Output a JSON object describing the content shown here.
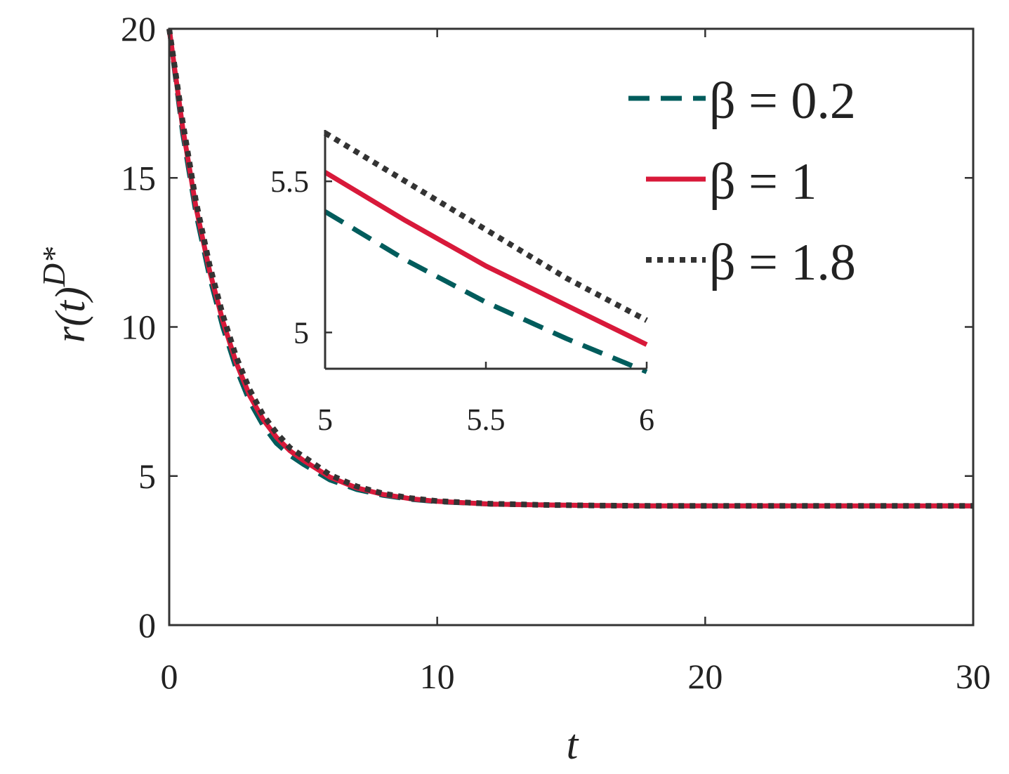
{
  "chart_data": {
    "type": "line",
    "xlabel": "t",
    "ylabel_base": "r(t)",
    "ylabel_sup": "D*",
    "xlim": [
      0,
      30
    ],
    "ylim": [
      0,
      20
    ],
    "xticks": [
      0,
      10,
      20,
      30
    ],
    "yticks": [
      0,
      5,
      10,
      15,
      20
    ],
    "grid": false,
    "legend_position": "top-right",
    "colors": {
      "beta_0_2": "#005c5c",
      "beta_1": "#d8193a",
      "beta_1_8": "#333333"
    },
    "series": [
      {
        "name": "β = 0.2",
        "style": "dashed",
        "color": "#005c5c",
        "x": [
          0,
          0.5,
          1,
          1.5,
          2,
          2.5,
          3,
          3.5,
          4,
          4.5,
          5,
          6,
          7,
          8,
          9,
          10,
          12,
          14,
          16,
          18,
          20,
          25,
          30
        ],
        "y": [
          20,
          16.5,
          13.8,
          11.7,
          10.0,
          8.6,
          7.5,
          6.7,
          6.1,
          5.7,
          5.4,
          4.87,
          4.55,
          4.35,
          4.22,
          4.14,
          4.06,
          4.03,
          4.01,
          4.0,
          4.0,
          4.0,
          4.0
        ]
      },
      {
        "name": "β = 1",
        "style": "solid",
        "color": "#d8193a",
        "x": [
          0,
          0.5,
          1,
          1.5,
          2,
          2.5,
          3,
          3.5,
          4,
          4.5,
          5,
          6,
          7,
          8,
          9,
          10,
          12,
          14,
          16,
          18,
          20,
          25,
          30
        ],
        "y": [
          20,
          16.7,
          14.0,
          11.9,
          10.2,
          8.8,
          7.7,
          6.9,
          6.3,
          5.85,
          5.53,
          4.96,
          4.6,
          4.38,
          4.24,
          4.15,
          4.06,
          4.03,
          4.01,
          4.0,
          4.0,
          4.0,
          4.0
        ]
      },
      {
        "name": "β = 1.8",
        "style": "dotted",
        "color": "#333333",
        "x": [
          0,
          0.5,
          1,
          1.5,
          2,
          2.5,
          3,
          3.5,
          4,
          4.5,
          5,
          6,
          7,
          8,
          9,
          10,
          12,
          14,
          16,
          18,
          20,
          25,
          30
        ],
        "y": [
          20,
          16.9,
          14.2,
          12.1,
          10.4,
          9.0,
          7.9,
          7.05,
          6.45,
          5.95,
          5.66,
          5.04,
          4.65,
          4.41,
          4.26,
          4.16,
          4.07,
          4.03,
          4.01,
          4.0,
          4.0,
          4.0,
          4.0
        ]
      }
    ],
    "inset": {
      "xlim": [
        5,
        6
      ],
      "ylim": [
        4.88,
        5.67
      ],
      "xticks": [
        5,
        5.5,
        6
      ],
      "xtick_labels": [
        "5",
        "5.5",
        "6"
      ],
      "yticks": [
        5,
        5.5
      ],
      "ytick_labels": [
        "5",
        "5.5"
      ],
      "series": [
        {
          "name": "β = 0.2",
          "x": [
            5,
            5.25,
            5.5,
            5.75,
            6
          ],
          "y": [
            5.4,
            5.24,
            5.1,
            4.98,
            4.87
          ]
        },
        {
          "name": "β = 1",
          "x": [
            5,
            5.25,
            5.5,
            5.75,
            6
          ],
          "y": [
            5.53,
            5.37,
            5.22,
            5.09,
            4.96
          ]
        },
        {
          "name": "β = 1.8",
          "x": [
            5,
            5.25,
            5.5,
            5.75,
            6
          ],
          "y": [
            5.66,
            5.5,
            5.34,
            5.18,
            5.04
          ]
        }
      ]
    }
  }
}
